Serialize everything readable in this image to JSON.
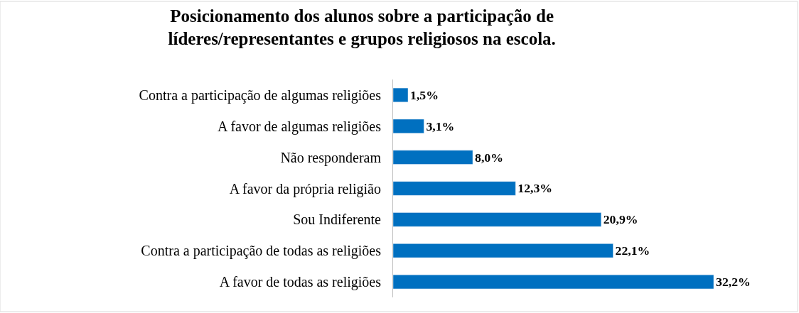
{
  "chart_data": {
    "type": "bar",
    "orientation": "horizontal",
    "title": "Posicionamento dos alunos sobre a participação de\nlíderes/representantes e grupos religiosos na escola.",
    "categories": [
      "Contra a participação de algumas religiões",
      "A favor de algumas religiões",
      "Não responderam",
      "A favor da própria religião",
      "Sou Indiferente",
      "Contra a participação de todas as religiões",
      "A favor de todas as religiões"
    ],
    "values": [
      1.5,
      3.1,
      8.0,
      12.3,
      20.9,
      22.1,
      32.2
    ],
    "value_labels": [
      "1,5%",
      "3,1%",
      "8,0%",
      "12,3%",
      "20,9%",
      "22,1%",
      "32,2%"
    ],
    "color": "#0070c0"
  }
}
